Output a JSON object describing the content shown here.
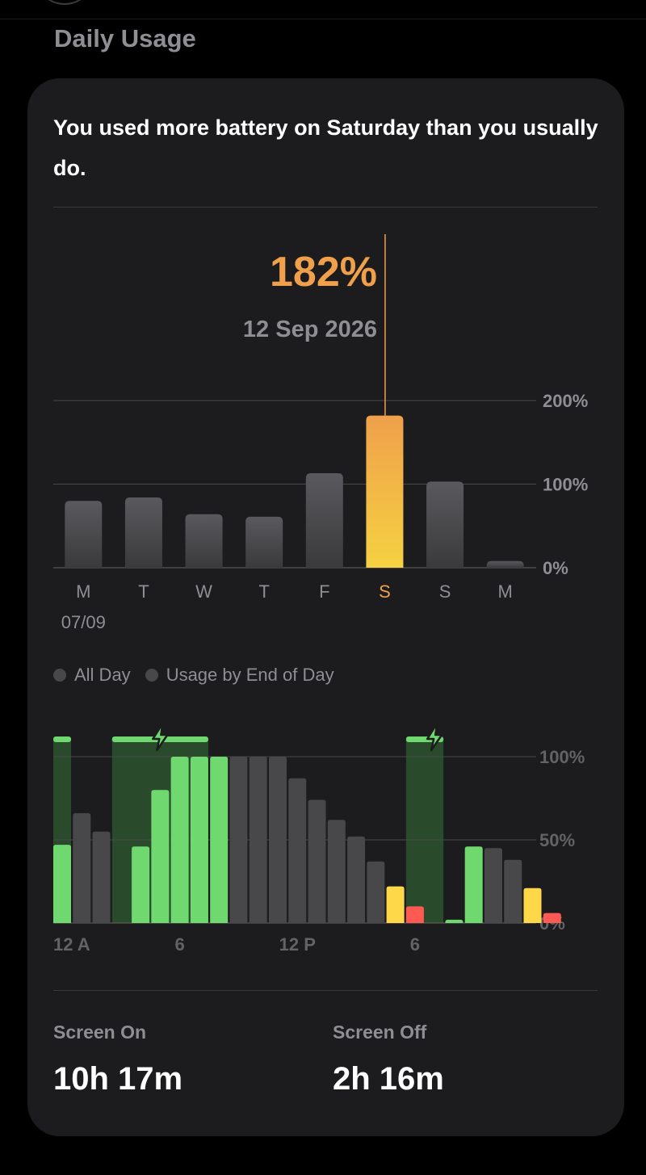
{
  "section_title": "Daily Usage",
  "headline": "You used more battery on Saturday than you usually do.",
  "selected": {
    "value": "182%",
    "date": "12 Sep 2026"
  },
  "colors": {
    "card_bg": "#1c1c1e",
    "bar_gray": "#48484a",
    "accent_orange": "#f0a04b",
    "accent_yellow": "#f5d142",
    "charging_green": "#6fd96f",
    "charge_band": "#2a4a2c",
    "low_yellow": "#ffd84a",
    "low_red": "#ff5a52"
  },
  "chart_data": [
    {
      "type": "bar",
      "categories": [
        "M",
        "T",
        "W",
        "T",
        "F",
        "S",
        "S",
        "M"
      ],
      "values": [
        80,
        84,
        64,
        61,
        113,
        182,
        103,
        8
      ],
      "first_label": "07/09",
      "selected_index": 5,
      "yticks": [
        "200%",
        "100%",
        "0%"
      ],
      "ylim": [
        0,
        200
      ]
    },
    {
      "type": "bar",
      "legend": [
        "All Day",
        "Usage by End of Day"
      ],
      "xticks": [
        "12 A",
        "6",
        "12 P",
        "6"
      ],
      "yticks": [
        "100%",
        "50%",
        "0%"
      ],
      "ylim": [
        0,
        100
      ],
      "values": [
        47,
        66,
        55,
        0,
        46,
        80,
        100,
        100,
        100,
        100,
        100,
        100,
        87,
        74,
        62,
        52,
        37,
        22,
        10,
        0,
        2,
        46,
        45,
        38,
        21,
        6
      ],
      "status": [
        "charge",
        "idle",
        "idle",
        "none",
        "charge",
        "charge",
        "charge",
        "charge",
        "charge",
        "idle",
        "idle",
        "idle",
        "idle",
        "idle",
        "idle",
        "idle",
        "idle",
        "low",
        "critical",
        "none",
        "charge",
        "charge",
        "idle",
        "idle",
        "low",
        "critical"
      ],
      "charging_windows": [
        [
          0,
          0
        ],
        [
          3,
          7
        ],
        [
          18,
          19
        ]
      ],
      "charging_icons": [
        5,
        19
      ]
    }
  ],
  "screen_on": {
    "label": "Screen On",
    "value": "10h 17m"
  },
  "screen_off": {
    "label": "Screen Off",
    "value": "2h 16m"
  }
}
